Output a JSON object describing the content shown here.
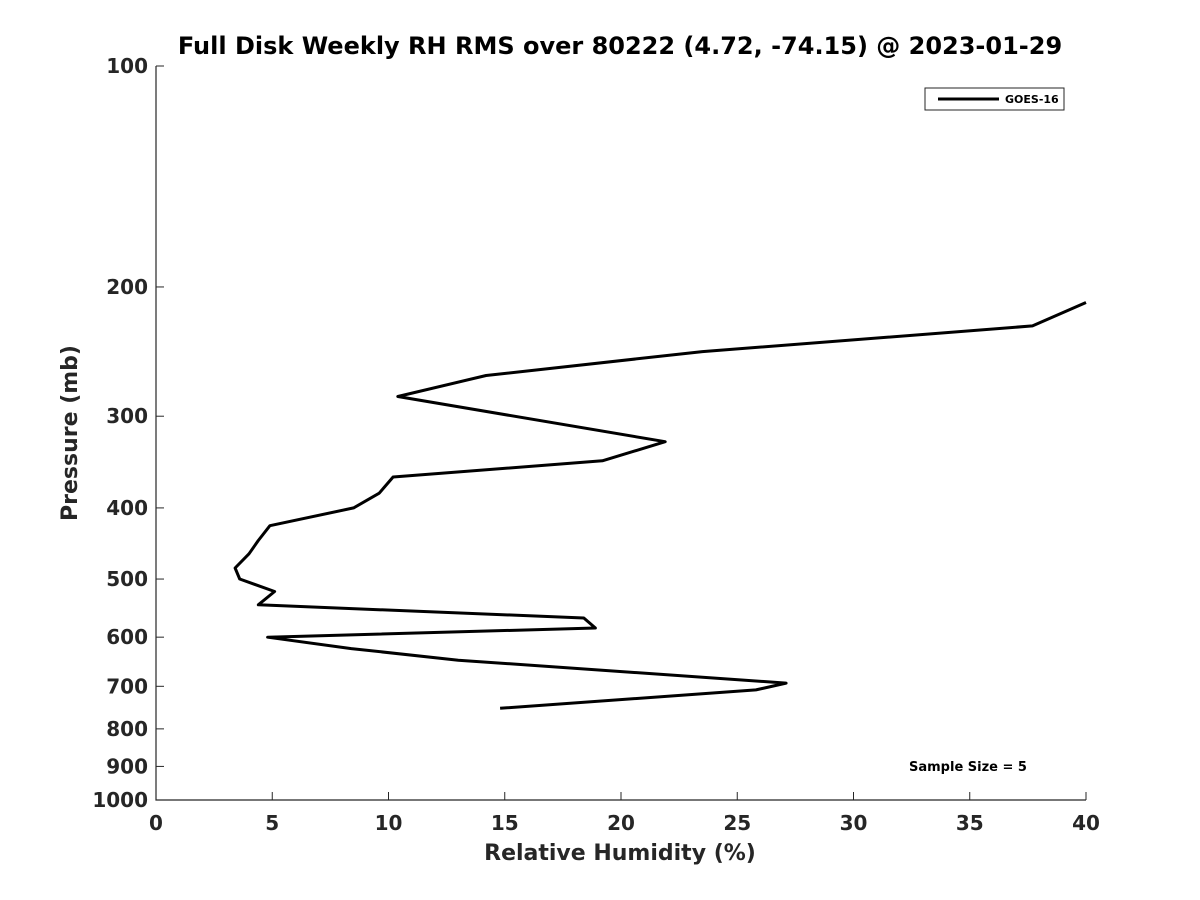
{
  "chart_data": {
    "type": "line",
    "title": "Full Disk Weekly RH RMS over 80222 (4.72, -74.15) @ 2023-01-29",
    "xlabel": "Relative Humidity (%)",
    "ylabel": "Pressure (mb)",
    "xlim": [
      0,
      40
    ],
    "ylim": [
      1000,
      100
    ],
    "yscale": "log",
    "y_inverted": true,
    "grid": false,
    "legend_position": "top-right",
    "x_ticks": [
      "0",
      "5",
      "10",
      "15",
      "20",
      "25",
      "30",
      "35",
      "40"
    ],
    "y_ticks": [
      "100",
      "200",
      "300",
      "400",
      "500",
      "600",
      "700",
      "800",
      "900",
      "1000"
    ],
    "series": [
      {
        "name": "GOES-16",
        "color": "#000000",
        "points": [
          {
            "x": 14.8,
            "y": 750
          },
          {
            "x": 25.8,
            "y": 708
          },
          {
            "x": 27.1,
            "y": 693
          },
          {
            "x": 13.0,
            "y": 645
          },
          {
            "x": 8.4,
            "y": 622
          },
          {
            "x": 4.8,
            "y": 600
          },
          {
            "x": 18.9,
            "y": 583
          },
          {
            "x": 18.4,
            "y": 565
          },
          {
            "x": 4.4,
            "y": 542
          },
          {
            "x": 5.1,
            "y": 520
          },
          {
            "x": 3.6,
            "y": 500
          },
          {
            "x": 3.4,
            "y": 483
          },
          {
            "x": 4.0,
            "y": 462
          },
          {
            "x": 4.4,
            "y": 443
          },
          {
            "x": 4.9,
            "y": 423
          },
          {
            "x": 8.5,
            "y": 400
          },
          {
            "x": 9.6,
            "y": 382
          },
          {
            "x": 10.2,
            "y": 363
          },
          {
            "x": 19.2,
            "y": 345
          },
          {
            "x": 21.9,
            "y": 325
          },
          {
            "x": 10.4,
            "y": 282
          },
          {
            "x": 14.2,
            "y": 264
          },
          {
            "x": 23.5,
            "y": 245
          },
          {
            "x": 37.7,
            "y": 226
          },
          {
            "x": 40.0,
            "y": 210
          }
        ]
      }
    ],
    "annotation": "Sample Size = 5"
  }
}
